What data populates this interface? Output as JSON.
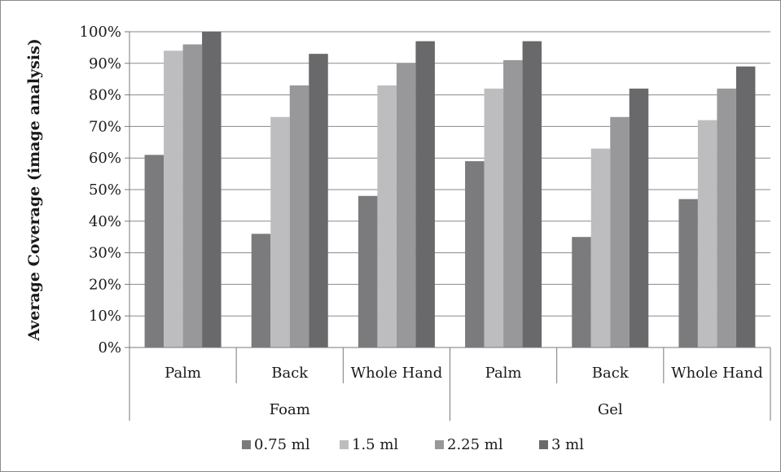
{
  "chart_data": {
    "type": "bar",
    "title": "",
    "xlabel": "",
    "ylabel": "Average Coverage (image analysis)",
    "ylim": [
      0,
      100
    ],
    "y_tick_format": "percent",
    "y_ticks": [
      "0%",
      "10%",
      "20%",
      "30%",
      "40%",
      "50%",
      "60%",
      "70%",
      "80%",
      "90%",
      "100%"
    ],
    "grid": "horizontal",
    "legend_position": "bottom",
    "groups": [
      {
        "label": "Foam",
        "categories": [
          "Palm",
          "Back",
          "Whole Hand"
        ]
      },
      {
        "label": "Gel",
        "categories": [
          "Palm",
          "Back",
          "Whole Hand"
        ]
      }
    ],
    "categories": [
      "Palm",
      "Back",
      "Whole Hand",
      "Palm",
      "Back",
      "Whole Hand"
    ],
    "series": [
      {
        "name": "0.75 ml",
        "color": "#7b7b7d",
        "values": [
          61,
          36,
          48,
          59,
          35,
          47
        ]
      },
      {
        "name": "1.5 ml",
        "color": "#bdbdbf",
        "values": [
          94,
          73,
          83,
          82,
          63,
          72
        ]
      },
      {
        "name": "2.25 ml",
        "color": "#98989a",
        "values": [
          96,
          83,
          90,
          91,
          73,
          82
        ]
      },
      {
        "name": "3 ml",
        "color": "#69696b",
        "values": [
          100,
          93,
          97,
          97,
          82,
          89
        ]
      }
    ]
  }
}
